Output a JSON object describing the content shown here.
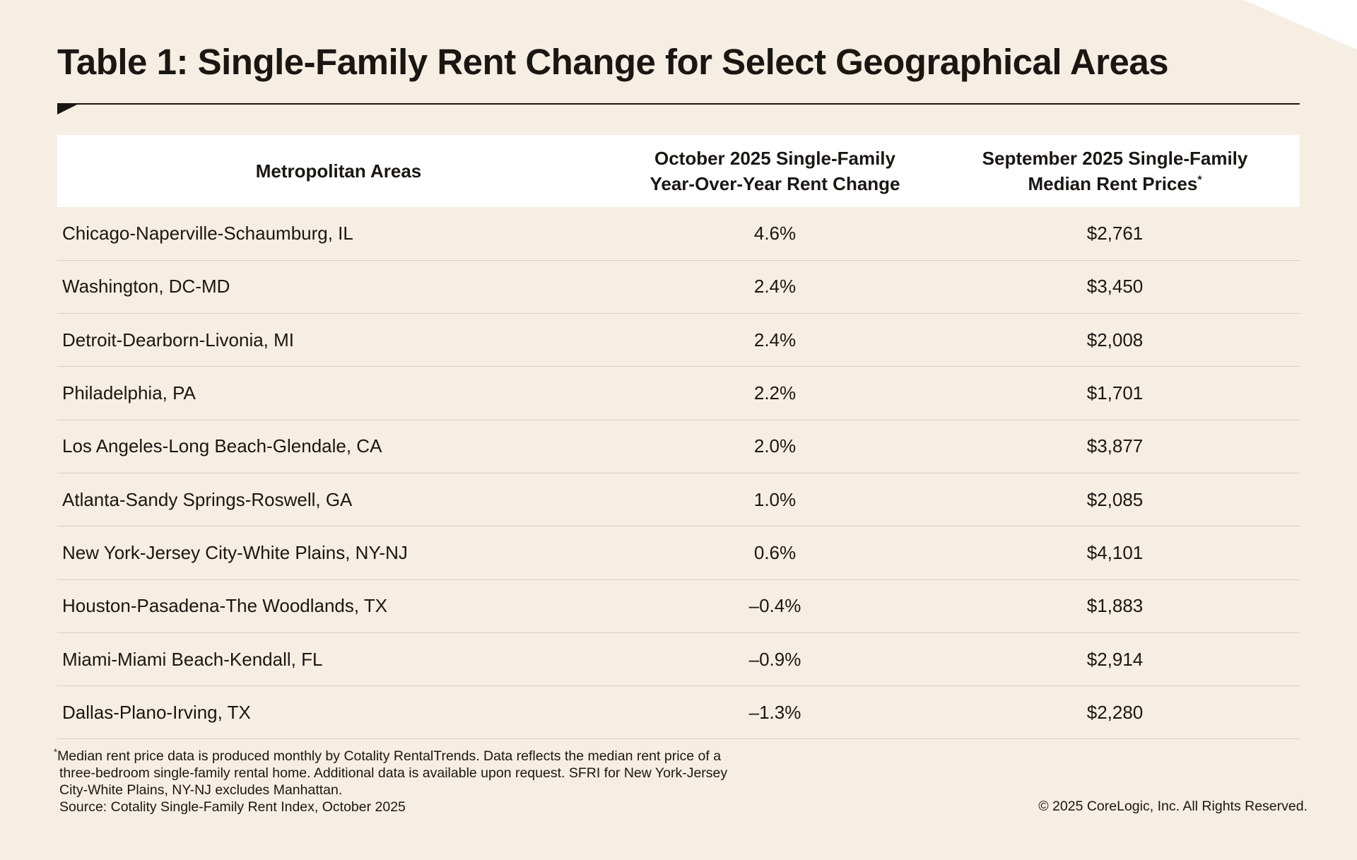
{
  "colors": {
    "background": "#f6eee2",
    "header_bg": "#ffffff",
    "text": "#1a1613",
    "row_divider": "#d9d0c4",
    "corner": "#ffffff"
  },
  "title": "Table 1: Single-Family Rent Change for Select Geographical Areas",
  "chart_data": {
    "type": "table",
    "title": "Table 1: Single-Family Rent Change for Select Geographical Areas",
    "columns": [
      {
        "label": "Metropolitan Areas"
      },
      {
        "line1": "October 2025 Single-Family",
        "line2": "Year-Over-Year Rent Change"
      },
      {
        "line1": "September 2025 Single-Family",
        "line2": "Median Rent Prices",
        "marker": "*"
      }
    ],
    "rows": [
      {
        "area": "Chicago-Naperville-Schaumburg, IL",
        "yoy_change": "4.6%",
        "median_rent": "$2,761"
      },
      {
        "area": "Washington, DC-MD",
        "yoy_change": "2.4%",
        "median_rent": "$3,450"
      },
      {
        "area": "Detroit-Dearborn-Livonia, MI",
        "yoy_change": "2.4%",
        "median_rent": "$2,008"
      },
      {
        "area": "Philadelphia, PA",
        "yoy_change": "2.2%",
        "median_rent": "$1,701"
      },
      {
        "area": "Los Angeles-Long Beach-Glendale, CA",
        "yoy_change": "2.0%",
        "median_rent": "$3,877"
      },
      {
        "area": "Atlanta-Sandy Springs-Roswell, GA",
        "yoy_change": "1.0%",
        "median_rent": "$2,085"
      },
      {
        "area": "New York-Jersey City-White Plains, NY-NJ",
        "yoy_change": "0.6%",
        "median_rent": "$4,101"
      },
      {
        "area": "Houston-Pasadena-The Woodlands, TX",
        "yoy_change": "–0.4%",
        "median_rent": "$1,883"
      },
      {
        "area": "Miami-Miami Beach-Kendall, FL",
        "yoy_change": "–0.9%",
        "median_rent": "$2,914"
      },
      {
        "area": "Dallas-Plano-Irving, TX",
        "yoy_change": "–1.3%",
        "median_rent": "$2,280"
      }
    ]
  },
  "footnote": {
    "marker": "*",
    "line1": "Median rent price data is produced monthly by Cotality RentalTrends. Data reflects the median rent price of a",
    "line2": "three-bedroom single-family rental home. Additional data is available upon request. SFRI for New York-Jersey",
    "line3": "City-White Plains, NY-NJ excludes Manhattan.",
    "source": "Source: Cotality Single-Family Rent Index, October 2025"
  },
  "copyright": "© 2025 CoreLogic, Inc. All Rights Reserved."
}
